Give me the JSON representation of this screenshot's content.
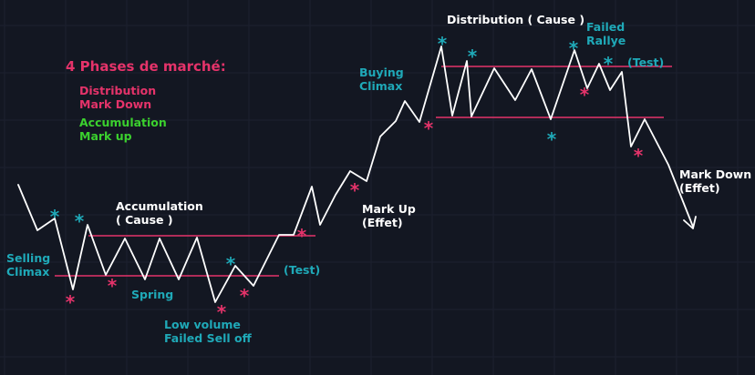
{
  "colors": {
    "background": "#131722",
    "grid": "#1c2130",
    "price": "#ffffff",
    "range": "#e5336a",
    "pink": "#e5336a",
    "teal": "#1fa9b8",
    "green": "#3bd12e",
    "white": "#ffffff"
  },
  "legend": {
    "title": "4 Phases de marché:",
    "items": [
      {
        "text": "Distribution",
        "color": "pink"
      },
      {
        "text": "Mark Down",
        "color": "pink"
      },
      {
        "text": "Accumulation",
        "color": "green"
      },
      {
        "text": "Mark up",
        "color": "green"
      }
    ]
  },
  "annotations": {
    "selling_climax": [
      "Selling",
      "Climax"
    ],
    "accumulation": [
      "Accumulation",
      "( Cause )"
    ],
    "spring": "Spring",
    "low_volume": [
      "Low volume",
      "Failed Sell off"
    ],
    "test_low": "(Test)",
    "mark_up": [
      "Mark Up",
      "(Effet)"
    ],
    "buying_climax": [
      "Buying",
      "Climax"
    ],
    "distribution": "Distribution ( Cause )",
    "failed_rallye": [
      "Failed",
      "Rallye"
    ],
    "test_high": "(Test)",
    "mark_down": [
      "Mark Down",
      "(Effet)"
    ]
  },
  "markers": [
    {
      "symbol": "*",
      "color": "teal"
    },
    {
      "symbol": "*",
      "color": "teal"
    },
    {
      "symbol": "*",
      "color": "pink"
    },
    {
      "symbol": "*",
      "color": "pink"
    },
    {
      "symbol": "*",
      "color": "pink"
    },
    {
      "symbol": "*",
      "color": "teal"
    },
    {
      "symbol": "*",
      "color": "pink"
    },
    {
      "symbol": "*",
      "color": "pink"
    },
    {
      "symbol": "*",
      "color": "pink"
    },
    {
      "symbol": "*",
      "color": "pink"
    },
    {
      "symbol": "*",
      "color": "teal"
    },
    {
      "symbol": "*",
      "color": "teal"
    },
    {
      "symbol": "*",
      "color": "teal"
    },
    {
      "symbol": "*",
      "color": "teal"
    },
    {
      "symbol": "*",
      "color": "pink"
    },
    {
      "symbol": "*",
      "color": "teal"
    },
    {
      "symbol": "*",
      "color": "pink"
    }
  ]
}
